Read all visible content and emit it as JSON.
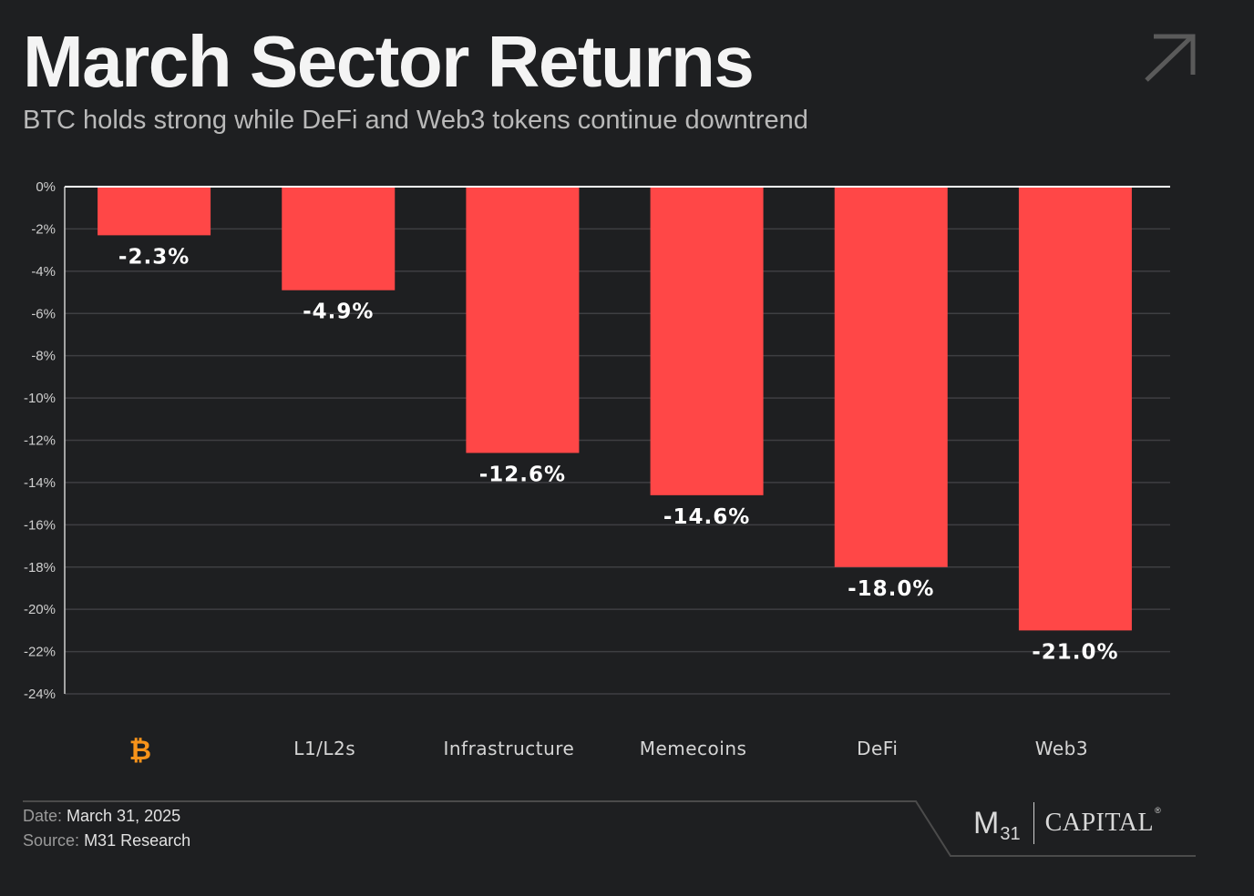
{
  "header": {
    "title": "March Sector Returns",
    "subtitle": "BTC holds strong while DeFi and Web3 tokens continue downtrend"
  },
  "footer": {
    "date_label": "Date:",
    "date_value": "March 31, 2025",
    "source_label": "Source:",
    "source_value": "M31 Research"
  },
  "logo": {
    "left_text": "M",
    "left_sub": "31",
    "right_text": "CAPITAL",
    "reg": "®"
  },
  "colors": {
    "background": "#1e1f21",
    "bar": "#ff4747",
    "bitcoin": "#f7931a",
    "grid": "#3e3f42"
  },
  "icons": {
    "corner": "arrow-up-right-icon",
    "first_category": "bitcoin-icon"
  },
  "chart_data": {
    "type": "bar",
    "categories": [
      "₿",
      "L1/L2s",
      "Infrastructure",
      "Memecoins",
      "DeFi",
      "Web3"
    ],
    "values": [
      -2.3,
      -4.9,
      -12.6,
      -14.6,
      -18.0,
      -21.0
    ],
    "data_labels": [
      "-2.3%",
      "-4.9%",
      "-12.6%",
      "-14.6%",
      "-18.0%",
      "-21.0%"
    ],
    "ylim": [
      -24,
      0
    ],
    "yticks": [
      0,
      -2,
      -4,
      -6,
      -8,
      -10,
      -12,
      -14,
      -16,
      -18,
      -20,
      -22,
      -24
    ],
    "ytick_labels": [
      "0%",
      "-2%",
      "-4%",
      "-6%",
      "-8%",
      "-10%",
      "-12%",
      "-14%",
      "-16%",
      "-18%",
      "-20%",
      "-22%",
      "-24%"
    ],
    "grid": true,
    "legend": "none",
    "xlabel": "",
    "ylabel": ""
  }
}
